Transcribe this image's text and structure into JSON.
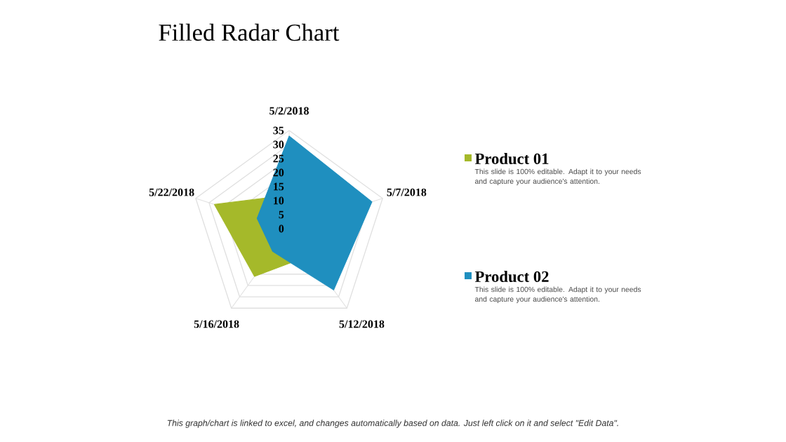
{
  "chart_data": {
    "type": "radar",
    "title": "Filled Radar Chart",
    "categories": [
      "5/2/2018",
      "5/7/2018",
      "5/12/2018",
      "5/16/2018",
      "5/22/2018"
    ],
    "series": [
      {
        "name": "Product 01",
        "color": "#a5b92a",
        "values": [
          12,
          12,
          12,
          21,
          28
        ]
      },
      {
        "name": "Product 02",
        "color": "#1f8fbf",
        "values": [
          33,
          31,
          27,
          10,
          12
        ]
      }
    ],
    "ylim": [
      0,
      35
    ],
    "yticks": [
      0,
      5,
      10,
      15,
      20,
      25,
      30,
      35
    ],
    "grid": true,
    "legend": "right",
    "annotations": [
      "This slide is 100% editable. Adapt it to your needs and capture your audience's attention.",
      "This slide is 100% editable. Adapt it to your needs and capture your audience's attention.",
      "This graph/chart is linked to excel, and changes automatically based on data. Just left click on it and select \"Edit Data\"."
    ]
  }
}
